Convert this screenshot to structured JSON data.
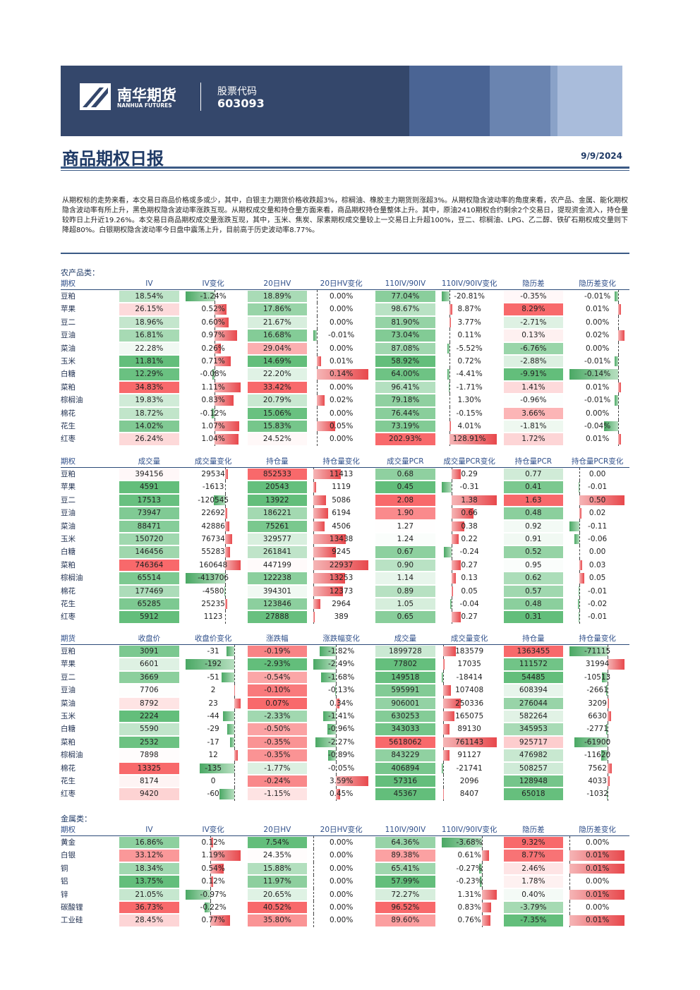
{
  "header": {
    "company": "南华期货",
    "company_en": "NANHUA FUTURES",
    "stock_label": "股票代码",
    "stock_code": "603093"
  },
  "title": "商品期权日报",
  "date": "9/9/2024",
  "summary": "从期权标的走势来看，本交易日商品价格或多或少，其中，白银主力期货价格收跌超3%，棕榈油、橡胶主力期货则涨超3%。从期权隐含波动率的角度来看，农产品、金属、能化期权隐含波动率有所上升，黑色期权隐含波动率涨跌互现。从期权成交量和持仓量方面来看，商品期权持仓量整体上升。其中，原油2410期权合约剩余2个交易日，提现资金流入，持仓量较昨日上升近19.26%。本交易日商品期权成交量涨跌互现，其中，玉米、焦炭、尿素期权成交量较上一交易日上升超100%，豆二、棕榈油、LPG、乙二醇、铁矿石期权成交量则下降超80%。白银期权隐含波动率今日盘中震荡上升，目前高于历史波动率8.77%。",
  "tables": [
    {
      "section": "农产品类：",
      "headers": [
        "期权",
        "IV",
        "IV变化",
        "20日HV",
        "20日HV变化",
        "110IV/90IV",
        "110IV/90IV变化",
        "隐历差",
        "隐历差变化"
      ],
      "rows": [
        [
          "豆粕",
          "18.54%",
          "-1.24%",
          "18.89%",
          "0.00%",
          "77.04%",
          "-20.81%",
          "-0.35%",
          "-0.01%"
        ],
        [
          "苹果",
          "26.15%",
          "0.52%",
          "17.86%",
          "0.00%",
          "98.67%",
          "8.87%",
          "8.29%",
          "0.01%"
        ],
        [
          "豆二",
          "18.96%",
          "0.60%",
          "21.67%",
          "0.00%",
          "81.90%",
          "3.77%",
          "-2.71%",
          "0.00%"
        ],
        [
          "豆油",
          "16.81%",
          "0.97%",
          "16.68%",
          "-0.01%",
          "73.04%",
          "0.11%",
          "0.13%",
          "0.02%"
        ],
        [
          "菜油",
          "22.28%",
          "0.26%",
          "29.04%",
          "0.00%",
          "87.08%",
          "-5.52%",
          "-6.76%",
          "0.00%"
        ],
        [
          "玉米",
          "11.81%",
          "0.71%",
          "14.69%",
          "0.01%",
          "58.92%",
          "0.72%",
          "-2.88%",
          "-0.01%"
        ],
        [
          "白糖",
          "12.29%",
          "-0.08%",
          "22.20%",
          "0.14%",
          "64.00%",
          "-4.41%",
          "-9.91%",
          "-0.14%"
        ],
        [
          "菜粕",
          "34.83%",
          "1.11%",
          "33.42%",
          "0.00%",
          "96.41%",
          "-1.71%",
          "1.41%",
          "0.01%"
        ],
        [
          "棕榈油",
          "19.83%",
          "0.83%",
          "20.79%",
          "0.02%",
          "79.18%",
          "1.30%",
          "-0.96%",
          "-0.01%"
        ],
        [
          "棉花",
          "18.72%",
          "-0.12%",
          "15.06%",
          "0.00%",
          "76.44%",
          "-0.15%",
          "3.66%",
          "0.00%"
        ],
        [
          "花生",
          "14.02%",
          "1.07%",
          "15.83%",
          "0.05%",
          "73.19%",
          "4.01%",
          "-1.81%",
          "-0.04%"
        ],
        [
          "红枣",
          "26.24%",
          "1.04%",
          "24.52%",
          "0.00%",
          "202.93%",
          "128.91%",
          "1.72%",
          "0.01%"
        ]
      ]
    },
    {
      "headers": [
        "期权",
        "成交量",
        "成交量变化",
        "持仓量",
        "持仓量变化",
        "成交量PCR",
        "成交量PCR变化",
        "持仓量PCR",
        "持仓量PCR变化"
      ],
      "rows": [
        [
          "豆粕",
          "394156",
          "29534",
          "852533",
          "11413",
          "0.68",
          "0.29",
          "0.77",
          "0.00"
        ],
        [
          "苹果",
          "4591",
          "-1613",
          "20543",
          "1119",
          "0.45",
          "-0.31",
          "0.41",
          "-0.01"
        ],
        [
          "豆二",
          "17513",
          "-120545",
          "13922",
          "5086",
          "2.08",
          "1.38",
          "1.63",
          "0.50"
        ],
        [
          "豆油",
          "73947",
          "22692",
          "186221",
          "6194",
          "1.90",
          "0.66",
          "0.48",
          "0.02"
        ],
        [
          "菜油",
          "88471",
          "42886",
          "75261",
          "4506",
          "1.27",
          "0.38",
          "0.92",
          "-0.11"
        ],
        [
          "玉米",
          "150720",
          "76734",
          "329577",
          "13438",
          "1.24",
          "0.22",
          "0.91",
          "-0.06"
        ],
        [
          "白糖",
          "146456",
          "55283",
          "261841",
          "9245",
          "0.67",
          "-0.24",
          "0.52",
          "0.00"
        ],
        [
          "菜粕",
          "746364",
          "160648",
          "447199",
          "22937",
          "0.90",
          "0.27",
          "0.95",
          "0.03"
        ],
        [
          "棕榈油",
          "65514",
          "-413706",
          "122238",
          "13253",
          "1.14",
          "0.13",
          "0.62",
          "0.05"
        ],
        [
          "棉花",
          "177469",
          "-4580",
          "394301",
          "12373",
          "0.89",
          "0.05",
          "0.57",
          "-0.01"
        ],
        [
          "花生",
          "65285",
          "25235",
          "123846",
          "2964",
          "1.05",
          "-0.04",
          "0.48",
          "-0.02"
        ],
        [
          "红枣",
          "5912",
          "1123",
          "27888",
          "389",
          "0.65",
          "0.27",
          "0.31",
          "-0.01"
        ]
      ]
    },
    {
      "headers": [
        "期货",
        "收盘价",
        "收盘价变化",
        "涨跌幅",
        "涨跌幅变化",
        "成交量",
        "成交量变化",
        "持仓量",
        "持仓量变化"
      ],
      "rows": [
        [
          "豆粕",
          "3091",
          "-31",
          "-0.19%",
          "-1.82%",
          "1899728",
          "183579",
          "1363455",
          "-71115"
        ],
        [
          "苹果",
          "6601",
          "-192",
          "-2.93%",
          "-2.49%",
          "77802",
          "17035",
          "111572",
          "31994"
        ],
        [
          "豆二",
          "3669",
          "-51",
          "-0.54%",
          "-1.68%",
          "149518",
          "-18414",
          "54485",
          "-10513"
        ],
        [
          "豆油",
          "7706",
          "2",
          "-0.10%",
          "-0.13%",
          "595991",
          "107408",
          "608394",
          "-2661"
        ],
        [
          "菜油",
          "8792",
          "23",
          "0.07%",
          "0.34%",
          "906001",
          "250336",
          "276044",
          "3209"
        ],
        [
          "玉米",
          "2224",
          "-44",
          "-2.33%",
          "-1.41%",
          "630253",
          "165075",
          "582264",
          "6630"
        ],
        [
          "白糖",
          "5590",
          "-29",
          "-0.50%",
          "-0.96%",
          "343033",
          "89130",
          "345953",
          "-2771"
        ],
        [
          "菜粕",
          "2532",
          "-17",
          "-0.35%",
          "-2.27%",
          "5618062",
          "761143",
          "925717",
          "-61900"
        ],
        [
          "棕榈油",
          "7898",
          "12",
          "-0.35%",
          "-0.89%",
          "843229",
          "91127",
          "476982",
          "-11620"
        ],
        [
          "棉花",
          "13325",
          "-135",
          "-1.77%",
          "-0.05%",
          "406894",
          "-21741",
          "508257",
          "7562"
        ],
        [
          "花生",
          "8174",
          "0",
          "-0.24%",
          "3.59%",
          "57316",
          "2096",
          "128948",
          "4033"
        ],
        [
          "红枣",
          "9420",
          "-60",
          "-1.15%",
          "0.45%",
          "45367",
          "8407",
          "65018",
          "-1032"
        ]
      ]
    },
    {
      "section": "金属类：",
      "headers": [
        "期权",
        "IV",
        "IV变化",
        "20日HV",
        "20日HV变化",
        "110IV/90IV",
        "110IV/90IV变化",
        "隐历差",
        "隐历差变化"
      ],
      "rows": [
        [
          "黄金",
          "16.86%",
          "0.12%",
          "7.54%",
          "0.00%",
          "64.36%",
          "-3.68%",
          "9.32%",
          "0.00%"
        ],
        [
          "白银",
          "33.12%",
          "1.19%",
          "24.35%",
          "0.00%",
          "89.38%",
          "0.61%",
          "8.77%",
          "0.01%"
        ],
        [
          "铜",
          "18.34%",
          "0.54%",
          "15.88%",
          "0.00%",
          "65.41%",
          "-0.27%",
          "2.46%",
          "0.01%"
        ],
        [
          "铝",
          "13.75%",
          "0.12%",
          "11.97%",
          "0.00%",
          "57.99%",
          "-0.23%",
          "1.78%",
          "0.00%"
        ],
        [
          "锌",
          "21.05%",
          "-0.97%",
          "20.65%",
          "0.00%",
          "72.27%",
          "1.31%",
          "0.40%",
          "0.01%"
        ],
        [
          "碳酸锂",
          "36.73%",
          "-0.22%",
          "40.52%",
          "0.00%",
          "96.52%",
          "0.83%",
          "-3.79%",
          "0.00%"
        ],
        [
          "工业硅",
          "28.45%",
          "0.77%",
          "35.80%",
          "0.00%",
          "89.60%",
          "0.76%",
          "-7.35%",
          "0.01%"
        ]
      ]
    }
  ]
}
